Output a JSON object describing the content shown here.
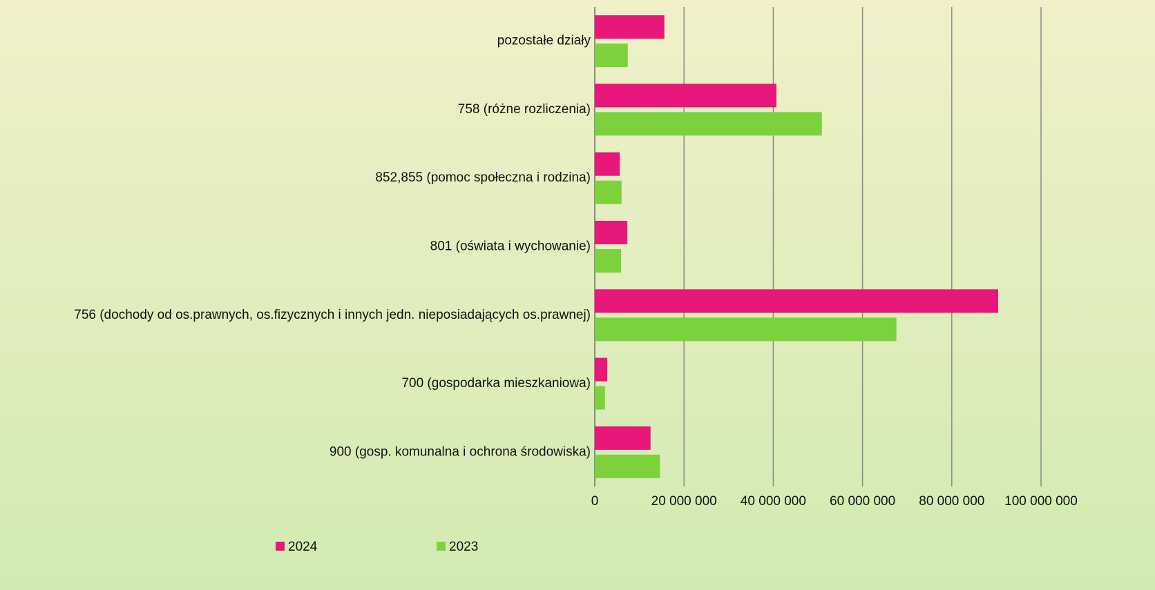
{
  "chart_data": {
    "type": "hbar",
    "categories": [
      "pozostałe działy",
      "758 (różne rozliczenia)",
      "852,855 (pomoc społeczna i rodzina)",
      "801 (oświata i wychowanie)",
      "756 (dochody od os.prawnych, os.fizycznych i innych jedn. nieposiadających os.prawnej)",
      "700 (gospodarka mieszkaniowa)",
      "900 (gosp. komunalna i ochrona środowiska)"
    ],
    "series": [
      {
        "name": "2024",
        "color": "#e8177a",
        "values": [
          15600000,
          40700000,
          5600000,
          7300000,
          90400000,
          2800000,
          12500000
        ]
      },
      {
        "name": "2023",
        "color": "#7dd13d",
        "values": [
          7400000,
          50900000,
          6000000,
          5900000,
          67600000,
          2300000,
          14600000
        ]
      }
    ],
    "xlim": [
      0,
      100000000
    ],
    "xticks": [
      0,
      {
        "value": 20000000,
        "label": "20 000 000"
      },
      {
        "value": 40000000,
        "label": "40 000 000"
      },
      {
        "value": 60000000,
        "label": "60 000 000"
      },
      {
        "value": 80000000,
        "label": "80 000 000"
      },
      {
        "value": 100000000,
        "label": "100 000 000"
      }
    ],
    "grid": true,
    "legend": "bottom"
  }
}
